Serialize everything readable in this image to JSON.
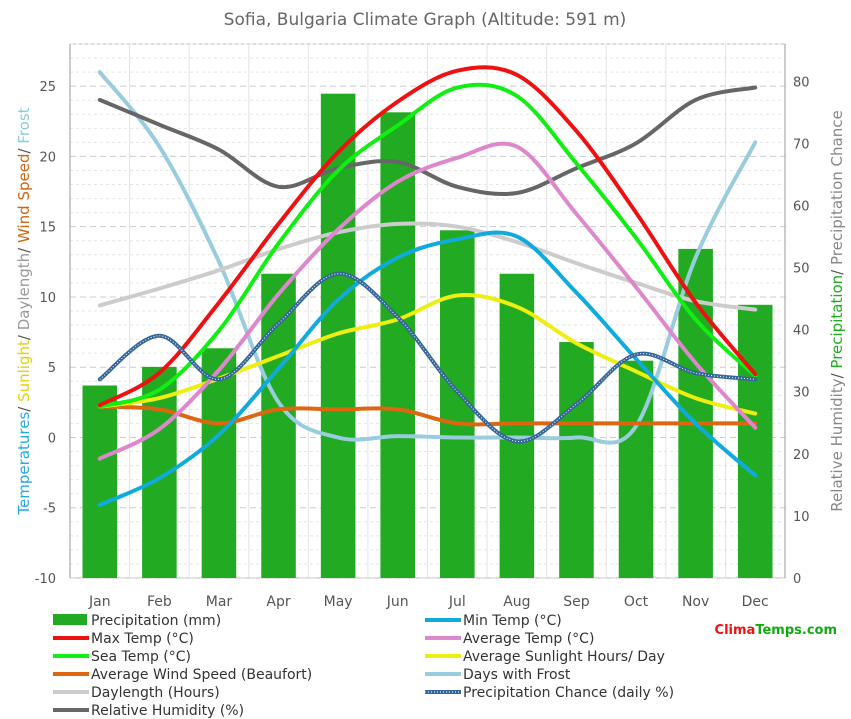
{
  "chart_data": {
    "type": "bar+line",
    "title": "Sofia, Bulgaria Climate Graph (Altitude: 591 m)",
    "categories": [
      "Jan",
      "Feb",
      "Mar",
      "Apr",
      "May",
      "Jun",
      "Jul",
      "Aug",
      "Sep",
      "Oct",
      "Nov",
      "Dec"
    ],
    "left_axis": {
      "range": [
        -10,
        28
      ],
      "ticks": [
        -10,
        -5,
        0,
        5,
        10,
        15,
        20,
        25
      ],
      "label_parts": [
        {
          "text": "Temperatures",
          "color": "#22aadd"
        },
        {
          "text": "/ ",
          "color": "#555555"
        },
        {
          "text": "Sunlight",
          "color": "#e6d200"
        },
        {
          "text": "/ ",
          "color": "#555555"
        },
        {
          "text": "Daylength",
          "color": "#999999"
        },
        {
          "text": "/ ",
          "color": "#555555"
        },
        {
          "text": "Wind Speed",
          "color": "#cc6611"
        },
        {
          "text": "/ ",
          "color": "#555555"
        },
        {
          "text": "Frost",
          "color": "#88ccdd"
        }
      ]
    },
    "right_axis": {
      "range": [
        0,
        86
      ],
      "ticks": [
        0,
        10,
        20,
        30,
        40,
        50,
        60,
        70,
        80
      ],
      "label_parts": [
        {
          "text": "Relative Humidity",
          "color": "#888888"
        },
        {
          "text": "/ ",
          "color": "#555555"
        },
        {
          "text": "Precipitation",
          "color": "#22aa22"
        },
        {
          "text": "/ ",
          "color": "#555555"
        },
        {
          "text": "Precipitation Chance",
          "color": "#888888"
        }
      ]
    },
    "grid": true,
    "series": [
      {
        "name": "Precipitation (mm)",
        "kind": "bar",
        "axis": "right",
        "color": "#22aa22",
        "values": [
          31,
          34,
          37,
          49,
          78,
          75,
          56,
          49,
          38,
          35,
          53,
          44
        ]
      },
      {
        "name": "Min Temp (°C)",
        "kind": "line",
        "axis": "left",
        "color": "#11aadd",
        "values": [
          -4.8,
          -2.9,
          0.2,
          4.9,
          9.8,
          12.8,
          14.1,
          14.3,
          10.3,
          5.6,
          1.0,
          -2.7
        ]
      },
      {
        "name": "Max Temp (°C)",
        "kind": "line",
        "axis": "left",
        "color": "#ee1111",
        "values": [
          2.3,
          4.6,
          9.6,
          15.2,
          20.3,
          23.9,
          26.1,
          25.8,
          21.8,
          16.0,
          9.6,
          4.5
        ]
      },
      {
        "name": "Average Temp (°C)",
        "kind": "line",
        "axis": "left",
        "color": "#dd88cc",
        "values": [
          -1.5,
          0.6,
          4.8,
          10.2,
          14.8,
          18.2,
          19.9,
          20.7,
          15.9,
          10.7,
          5.3,
          0.7
        ]
      },
      {
        "name": "Sea Temp (°C)",
        "kind": "line",
        "axis": "left",
        "color": "#11ee11",
        "values": [
          2.2,
          3.4,
          7.6,
          13.8,
          19.0,
          22.2,
          24.9,
          24.3,
          19.5,
          14.2,
          8.4,
          4.4
        ]
      },
      {
        "name": "Average Sunlight Hours/ Day",
        "kind": "line",
        "axis": "left",
        "color": "#eeee11",
        "values": [
          2.2,
          2.8,
          4.2,
          5.8,
          7.4,
          8.4,
          10.1,
          9.3,
          6.7,
          4.7,
          2.8,
          1.7
        ]
      },
      {
        "name": "Average Wind Speed (Beaufort)",
        "kind": "line",
        "axis": "left",
        "color": "#dd6611",
        "values": [
          2.2,
          2.0,
          1.0,
          2.0,
          2.0,
          2.0,
          1.0,
          1.0,
          1.0,
          1.0,
          1.0,
          1.0
        ]
      },
      {
        "name": "Days with Frost",
        "kind": "line",
        "axis": "left",
        "color": "#99ccdd",
        "values": [
          26.0,
          20.7,
          12.5,
          2.5,
          0.0,
          0.1,
          0.0,
          0.0,
          0.0,
          0.8,
          12.8,
          21.0
        ]
      },
      {
        "name": "Daylength (Hours)",
        "kind": "line",
        "axis": "left",
        "color": "#cccccc",
        "values": [
          9.4,
          10.6,
          11.9,
          13.4,
          14.6,
          15.2,
          15.0,
          13.9,
          12.4,
          11.0,
          9.7,
          9.1
        ]
      },
      {
        "name": "Precipitation Chance (daily %)",
        "kind": "line",
        "axis": "right",
        "dashed": true,
        "color": "#336699",
        "values": [
          32,
          39,
          32,
          41,
          49,
          42,
          30,
          22,
          28,
          36,
          33,
          32
        ]
      },
      {
        "name": "Relative Humidity (%)",
        "kind": "line",
        "axis": "right",
        "color": "#666666",
        "values": [
          77,
          73,
          69,
          63,
          66,
          67,
          63,
          62,
          66,
          70,
          77,
          79
        ]
      }
    ]
  },
  "brand": {
    "part1": "Clima",
    "part2": "Temps",
    "part3": ".com",
    "color1": "#ee1111",
    "color2": "#11aa11"
  }
}
